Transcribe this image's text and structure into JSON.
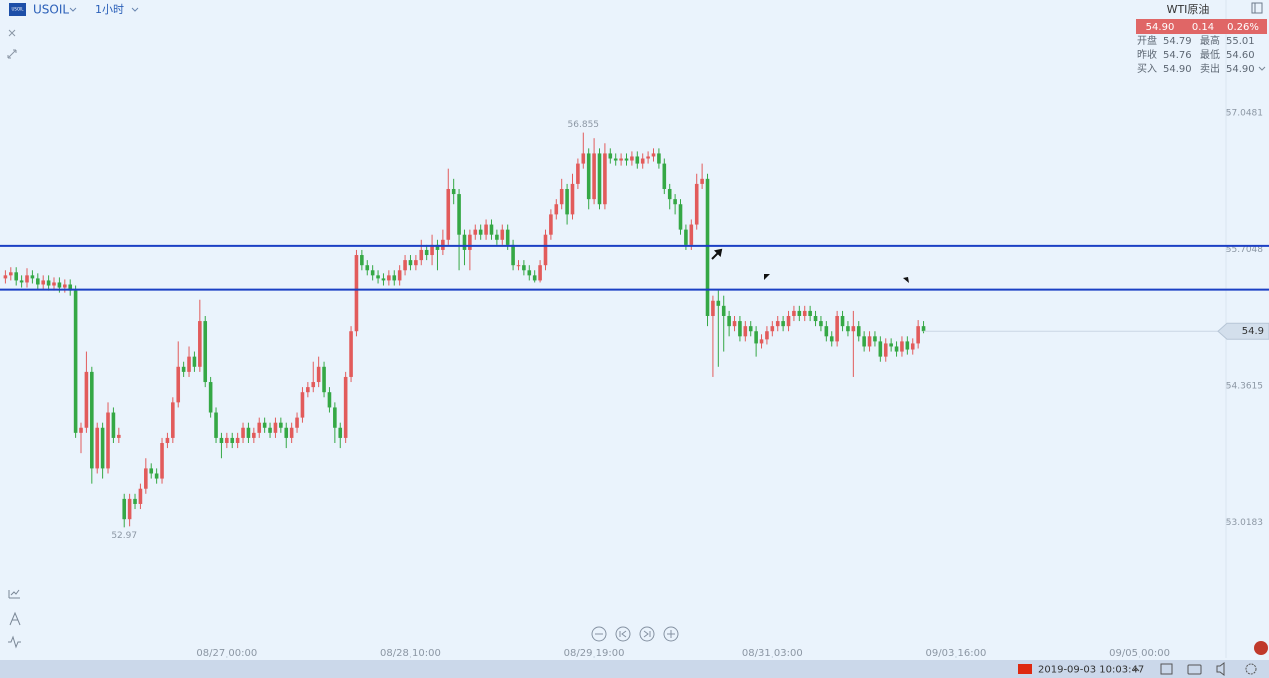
{
  "header": {
    "symbol": "USOIL",
    "interval": "1小时"
  },
  "quote": {
    "name": "WTI原油",
    "price": "54.90",
    "change": "0.14",
    "change_pct": "0.26%",
    "rows": [
      [
        "开盘",
        "54.79",
        "最高",
        "55.01"
      ],
      [
        "昨收",
        "54.76",
        "最低",
        "54.60"
      ],
      [
        "买入",
        "54.90",
        "卖出",
        "54.90"
      ]
    ]
  },
  "chart_data": {
    "type": "candlestick",
    "up_color": "#e25b5b",
    "down_color": "#35a845",
    "ylim": [
      51.684,
      58.16
    ],
    "yticks": [
      57.0481,
      55.7048,
      54.3615,
      53.0183
    ],
    "xlim": [
      -1,
      226
    ],
    "xticks": [
      {
        "value": 41,
        "label": "08/27 00:00"
      },
      {
        "value": 75,
        "label": "08/28 10:00"
      },
      {
        "value": 109,
        "label": "08/29 19:00"
      },
      {
        "value": 142,
        "label": "08/31 03:00"
      },
      {
        "value": 176,
        "label": "09/03 16:00"
      },
      {
        "value": 210,
        "label": "09/05 00:00"
      }
    ],
    "open": [
      55.42,
      55.45,
      55.48,
      55.4,
      55.38,
      55.45,
      55.42,
      55.36,
      55.4,
      55.35,
      55.38,
      55.33,
      55.36,
      55.3,
      53.9,
      53.95,
      54.5,
      53.55,
      53.95,
      53.55,
      54.1,
      53.85,
      53.25,
      53.05,
      53.25,
      53.2,
      53.35,
      53.55,
      53.5,
      53.45,
      53.8,
      53.85,
      54.2,
      54.55,
      54.5,
      54.65,
      54.55,
      55.0,
      54.4,
      54.1,
      53.85,
      53.8,
      53.85,
      53.8,
      53.85,
      53.95,
      53.85,
      53.9,
      54.0,
      53.95,
      53.9,
      54.0,
      53.95,
      53.85,
      53.95,
      54.05,
      54.3,
      54.35,
      54.4,
      54.55,
      54.3,
      54.15,
      53.95,
      53.85,
      54.45,
      54.9,
      55.65,
      55.55,
      55.5,
      55.45,
      55.42,
      55.4,
      55.45,
      55.4,
      55.5,
      55.6,
      55.55,
      55.6,
      55.7,
      55.65,
      55.75,
      55.7,
      55.8,
      56.3,
      56.25,
      55.85,
      55.7,
      55.85,
      55.9,
      55.85,
      55.95,
      55.85,
      55.8,
      55.9,
      55.75,
      55.55,
      55.55,
      55.5,
      55.45,
      55.4,
      55.55,
      55.85,
      56.05,
      56.15,
      56.3,
      56.05,
      56.35,
      56.55,
      56.65,
      56.2,
      56.65,
      56.15,
      56.65,
      56.6,
      56.58,
      56.6,
      56.58,
      56.62,
      56.55,
      56.6,
      56.62,
      56.65,
      56.55,
      56.3,
      56.2,
      56.15,
      55.9,
      55.75,
      55.95,
      56.35,
      56.4,
      55.05,
      55.2,
      55.15,
      55.05,
      54.95,
      55.0,
      54.85,
      54.95,
      54.9,
      54.78,
      54.82,
      54.9,
      54.95,
      55.0,
      54.95,
      55.05,
      55.1,
      55.05,
      55.1,
      55.05,
      55.0,
      54.95,
      54.85,
      54.8,
      55.05,
      54.95,
      54.9,
      54.95,
      54.85,
      54.75,
      54.85,
      54.8,
      54.65,
      54.78,
      54.75,
      54.7,
      54.8,
      54.72,
      54.78,
      54.95
    ],
    "high": [
      55.5,
      55.53,
      55.53,
      55.45,
      55.52,
      55.5,
      55.47,
      55.45,
      55.45,
      55.43,
      55.43,
      55.41,
      55.41,
      55.35,
      54.0,
      54.7,
      54.55,
      54.0,
      54.0,
      54.2,
      54.15,
      53.95,
      53.3,
      53.3,
      53.3,
      53.4,
      53.65,
      53.6,
      53.55,
      53.85,
      53.9,
      54.25,
      54.8,
      54.6,
      54.75,
      54.7,
      55.21,
      55.05,
      54.45,
      54.15,
      53.9,
      53.9,
      53.9,
      53.9,
      54.0,
      54.0,
      53.95,
      54.05,
      54.05,
      54.0,
      54.05,
      54.05,
      54.0,
      54.0,
      54.1,
      54.35,
      54.4,
      54.6,
      54.65,
      54.6,
      54.35,
      54.2,
      54.0,
      54.5,
      54.95,
      55.7,
      55.7,
      55.6,
      55.55,
      55.5,
      55.47,
      55.5,
      55.5,
      55.55,
      55.65,
      55.65,
      55.65,
      55.8,
      55.75,
      55.85,
      55.8,
      55.9,
      56.5,
      56.4,
      56.3,
      55.9,
      55.9,
      55.95,
      55.95,
      56.0,
      56.0,
      55.9,
      55.95,
      55.95,
      55.8,
      55.6,
      55.6,
      55.55,
      55.5,
      55.6,
      55.9,
      56.1,
      56.2,
      56.4,
      56.35,
      56.45,
      56.6,
      56.855,
      56.7,
      56.8,
      56.7,
      56.75,
      56.7,
      56.65,
      56.65,
      56.65,
      56.67,
      56.67,
      56.65,
      56.67,
      56.7,
      56.7,
      56.6,
      56.35,
      56.25,
      56.2,
      55.95,
      56.0,
      56.45,
      56.55,
      56.45,
      55.25,
      55.3,
      55.25,
      55.1,
      55.05,
      55.05,
      55.0,
      55.0,
      54.95,
      54.87,
      54.95,
      55.0,
      55.05,
      55.05,
      55.1,
      55.15,
      55.15,
      55.15,
      55.15,
      55.1,
      55.05,
      55.0,
      54.9,
      55.1,
      55.1,
      55.0,
      55.1,
      55.0,
      54.9,
      54.9,
      54.9,
      54.85,
      54.83,
      54.83,
      54.8,
      54.85,
      54.85,
      54.83,
      55.01,
      55.0
    ],
    "low": [
      55.37,
      55.4,
      55.35,
      55.33,
      55.33,
      55.37,
      55.31,
      55.31,
      55.3,
      55.3,
      55.28,
      55.28,
      55.25,
      53.85,
      53.7,
      53.9,
      53.4,
      53.5,
      53.45,
      53.5,
      53.8,
      53.8,
      52.97,
      52.98,
      53.15,
      53.15,
      53.3,
      53.45,
      53.4,
      53.4,
      53.75,
      53.8,
      54.15,
      54.45,
      54.45,
      54.5,
      54.5,
      54.35,
      54.05,
      53.8,
      53.65,
      53.75,
      53.75,
      53.75,
      53.8,
      53.8,
      53.8,
      53.85,
      53.9,
      53.85,
      53.85,
      53.9,
      53.75,
      53.8,
      53.9,
      54.0,
      54.25,
      54.3,
      54.35,
      54.25,
      54.1,
      53.8,
      53.75,
      53.8,
      54.4,
      54.85,
      55.5,
      55.45,
      55.4,
      55.37,
      55.35,
      55.35,
      55.35,
      55.35,
      55.45,
      55.5,
      55.5,
      55.55,
      55.6,
      55.55,
      55.5,
      55.65,
      55.75,
      56.15,
      55.5,
      55.55,
      55.5,
      55.8,
      55.8,
      55.8,
      55.8,
      55.75,
      55.75,
      55.7,
      55.5,
      55.5,
      55.45,
      55.4,
      55.38,
      55.38,
      55.5,
      55.8,
      56.0,
      56.1,
      55.95,
      56.0,
      56.3,
      56.5,
      56.1,
      56.15,
      56.1,
      56.1,
      56.55,
      56.53,
      56.53,
      56.53,
      56.53,
      56.5,
      56.5,
      56.55,
      56.57,
      56.5,
      56.25,
      56.1,
      56.05,
      55.85,
      55.7,
      55.7,
      55.9,
      56.3,
      54.95,
      54.45,
      54.55,
      54.7,
      54.85,
      54.9,
      54.8,
      54.8,
      54.85,
      54.65,
      54.73,
      54.77,
      54.85,
      54.9,
      54.9,
      54.9,
      55.0,
      55.0,
      55.0,
      55.0,
      54.95,
      54.9,
      54.8,
      54.75,
      54.75,
      54.9,
      54.85,
      54.45,
      54.8,
      54.7,
      54.7,
      54.75,
      54.6,
      54.6,
      54.7,
      54.65,
      54.65,
      54.67,
      54.67,
      54.73,
      54.88
    ],
    "close": [
      55.45,
      55.48,
      55.4,
      55.38,
      55.45,
      55.42,
      55.36,
      55.4,
      55.35,
      55.38,
      55.33,
      55.36,
      55.3,
      53.9,
      53.95,
      54.5,
      53.55,
      53.95,
      53.55,
      54.1,
      53.85,
      53.88,
      53.05,
      53.25,
      53.2,
      53.35,
      53.55,
      53.5,
      53.45,
      53.8,
      53.85,
      54.2,
      54.55,
      54.5,
      54.65,
      54.55,
      55.0,
      54.4,
      54.1,
      53.85,
      53.8,
      53.85,
      53.8,
      53.85,
      53.95,
      53.85,
      53.9,
      54.0,
      53.95,
      53.9,
      54.0,
      53.95,
      53.85,
      53.95,
      54.05,
      54.3,
      54.35,
      54.4,
      54.55,
      54.3,
      54.15,
      53.95,
      53.85,
      54.45,
      54.9,
      55.65,
      55.55,
      55.5,
      55.45,
      55.42,
      55.4,
      55.45,
      55.4,
      55.5,
      55.6,
      55.55,
      55.6,
      55.7,
      55.65,
      55.75,
      55.7,
      55.8,
      56.3,
      56.25,
      55.85,
      55.7,
      55.85,
      55.9,
      55.85,
      55.95,
      55.85,
      55.8,
      55.9,
      55.75,
      55.55,
      55.55,
      55.5,
      55.45,
      55.4,
      55.55,
      55.85,
      56.05,
      56.15,
      56.3,
      56.05,
      56.35,
      56.55,
      56.65,
      56.2,
      56.65,
      56.15,
      56.65,
      56.6,
      56.58,
      56.6,
      56.58,
      56.62,
      56.55,
      56.6,
      56.62,
      56.65,
      56.55,
      56.3,
      56.2,
      56.15,
      55.9,
      55.75,
      55.95,
      56.35,
      56.4,
      55.05,
      55.2,
      55.15,
      55.05,
      54.95,
      55.0,
      54.85,
      54.95,
      54.9,
      54.78,
      54.82,
      54.9,
      54.95,
      55.0,
      54.95,
      55.05,
      55.1,
      55.05,
      55.1,
      55.05,
      55.0,
      54.95,
      54.85,
      54.8,
      55.05,
      54.95,
      54.9,
      54.95,
      54.85,
      54.75,
      54.85,
      54.8,
      54.65,
      54.78,
      54.75,
      54.7,
      54.8,
      54.72,
      54.78,
      54.95,
      54.9
    ],
    "high_marker": 56.855,
    "low_marker": 52.97,
    "last_price": 54.9,
    "hlines": [
      55.74,
      55.31
    ],
    "hline_color": "#1b3fc4"
  },
  "footer": {
    "time": "2019-09-03 10:03:47"
  }
}
